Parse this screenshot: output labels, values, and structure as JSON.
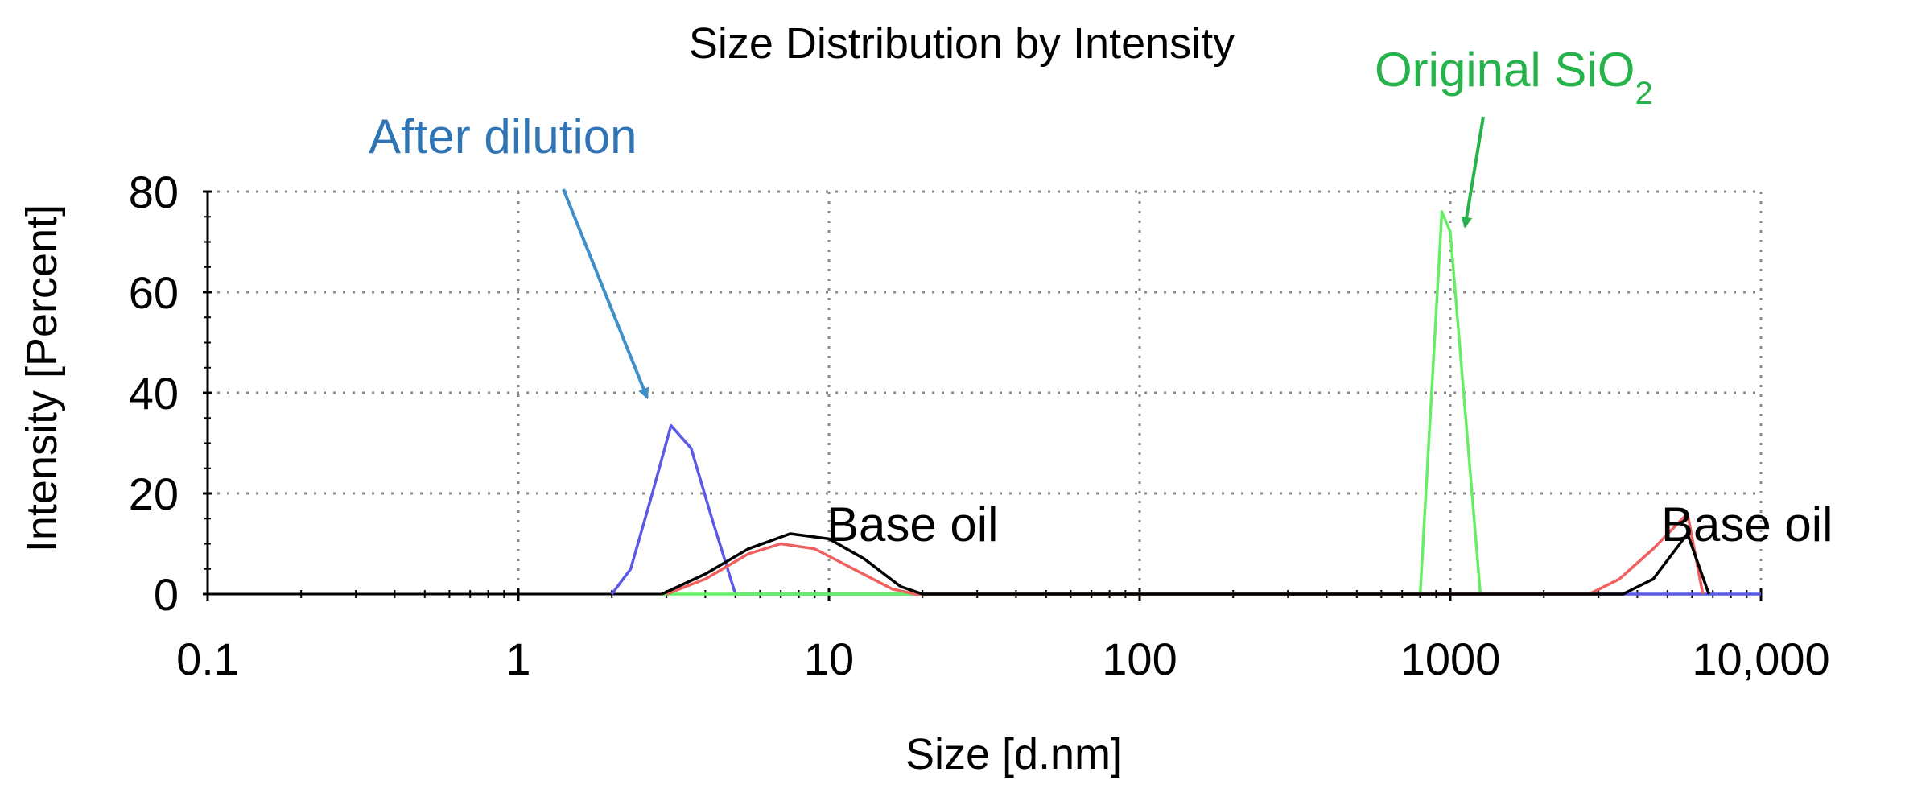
{
  "chart_data": {
    "type": "line",
    "title": "Size Distribution by Intensity",
    "xlabel": "Size [d.nm]",
    "ylabel": "Intensity [Percent]",
    "xscale": "log",
    "xlim": [
      0.1,
      10000
    ],
    "ylim": [
      0,
      80
    ],
    "grid": true,
    "x_ticks": [
      {
        "value": 0.1,
        "label": "0.1"
      },
      {
        "value": 1,
        "label": "1"
      },
      {
        "value": 10,
        "label": "10"
      },
      {
        "value": 100,
        "label": "100"
      },
      {
        "value": 1000,
        "label": "1000"
      },
      {
        "value": 10000,
        "label": "10,000"
      }
    ],
    "y_ticks": [
      {
        "value": 0,
        "label": "0"
      },
      {
        "value": 20,
        "label": "20"
      },
      {
        "value": 40,
        "label": "40"
      },
      {
        "value": 60,
        "label": "60"
      },
      {
        "value": 80,
        "label": "80"
      }
    ],
    "series": [
      {
        "name": "After dilution",
        "color": "#5a5ae6",
        "points": [
          [
            2.0,
            0
          ],
          [
            2.3,
            5
          ],
          [
            2.7,
            20
          ],
          [
            3.1,
            33.5
          ],
          [
            3.6,
            29
          ],
          [
            4.2,
            15
          ],
          [
            5.0,
            0
          ],
          [
            10000,
            0
          ]
        ]
      },
      {
        "name": "Original SiO2",
        "color": "#66ee66",
        "points": [
          [
            2.9,
            0
          ],
          [
            4.6,
            0
          ],
          [
            800,
            0
          ],
          [
            940,
            76
          ],
          [
            1000,
            72
          ],
          [
            1250,
            0
          ]
        ]
      },
      {
        "name": "Base oil (red)",
        "color": "#f06060",
        "points": [
          [
            3.0,
            0
          ],
          [
            4.0,
            3
          ],
          [
            5.5,
            8
          ],
          [
            7.0,
            10
          ],
          [
            9.0,
            9
          ],
          [
            12.0,
            5
          ],
          [
            16.0,
            1
          ],
          [
            19.0,
            0
          ],
          [
            2800,
            0
          ],
          [
            3500,
            3
          ],
          [
            4500,
            9
          ],
          [
            5800,
            16
          ],
          [
            6500,
            0
          ]
        ]
      },
      {
        "name": "Base oil (black)",
        "color": "#000000",
        "points": [
          [
            2.9,
            0
          ],
          [
            4.0,
            4
          ],
          [
            5.5,
            9
          ],
          [
            7.5,
            12
          ],
          [
            10.0,
            11
          ],
          [
            13.0,
            7
          ],
          [
            17.0,
            1.5
          ],
          [
            20.0,
            0
          ],
          [
            3600,
            0
          ],
          [
            4500,
            3
          ],
          [
            5800,
            12
          ],
          [
            6800,
            0
          ]
        ]
      }
    ],
    "annotations": [
      {
        "text": "After dilution",
        "color": "#2f74b5",
        "arrow_to": [
          2.6,
          39
        ]
      },
      {
        "text": "Original SiO",
        "subscript": "2",
        "color": "#27b34c",
        "arrow_to": [
          990,
          73
        ]
      },
      {
        "text": "Base oil",
        "color": "#000000"
      },
      {
        "text": "Base oil",
        "color": "#000000"
      }
    ]
  }
}
